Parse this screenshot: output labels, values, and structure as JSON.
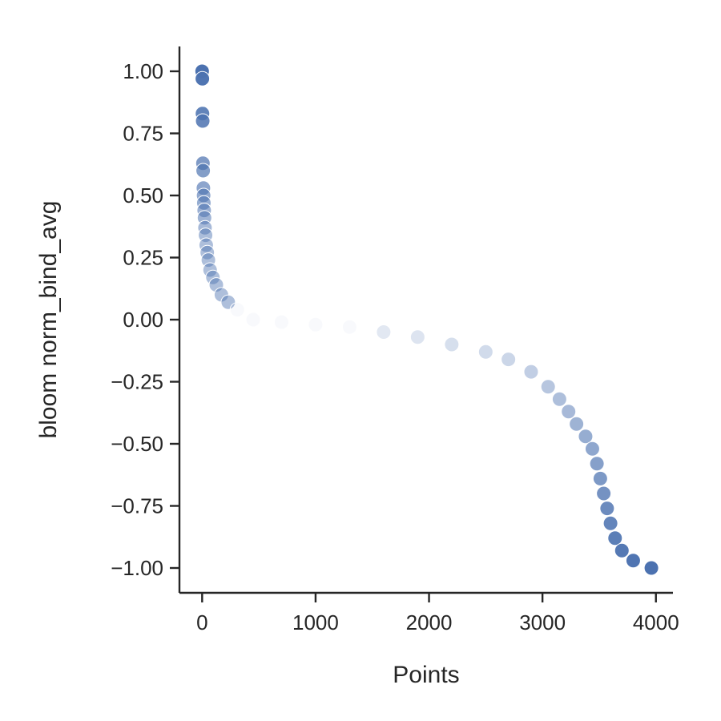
{
  "chart_data": {
    "type": "scatter",
    "title": "",
    "xlabel": "Points",
    "ylabel": "bloom norm_bind_avg",
    "xlim": [
      -200,
      4150
    ],
    "ylim": [
      -1.1,
      1.1
    ],
    "xticks": [
      0,
      1000,
      2000,
      3000,
      4000
    ],
    "xtick_labels": [
      "0",
      "1000",
      "2000",
      "3000",
      "4000"
    ],
    "yticks": [
      1.0,
      0.75,
      0.5,
      0.25,
      0.0,
      -0.25,
      -0.5,
      -0.75,
      -1.0
    ],
    "ytick_labels": [
      "1.00",
      "0.75",
      "0.50",
      "0.25",
      "0.00",
      "−0.25",
      "−0.50",
      "−0.75",
      "−1.00"
    ],
    "grid": false,
    "legend": false,
    "marker_color": "#4c72b0",
    "points": [
      {
        "x": 0,
        "y": 1.0
      },
      {
        "x": 2,
        "y": 0.97
      },
      {
        "x": 3,
        "y": 0.83
      },
      {
        "x": 5,
        "y": 0.8
      },
      {
        "x": 7,
        "y": 0.63
      },
      {
        "x": 9,
        "y": 0.6
      },
      {
        "x": 11,
        "y": 0.53
      },
      {
        "x": 13,
        "y": 0.5
      },
      {
        "x": 15,
        "y": 0.47
      },
      {
        "x": 18,
        "y": 0.44
      },
      {
        "x": 21,
        "y": 0.41
      },
      {
        "x": 25,
        "y": 0.37
      },
      {
        "x": 30,
        "y": 0.34
      },
      {
        "x": 36,
        "y": 0.3
      },
      {
        "x": 45,
        "y": 0.27
      },
      {
        "x": 55,
        "y": 0.24
      },
      {
        "x": 70,
        "y": 0.2
      },
      {
        "x": 95,
        "y": 0.17
      },
      {
        "x": 125,
        "y": 0.14
      },
      {
        "x": 170,
        "y": 0.1
      },
      {
        "x": 230,
        "y": 0.07
      },
      {
        "x": 310,
        "y": 0.04
      },
      {
        "x": 450,
        "y": 0.0
      },
      {
        "x": 700,
        "y": -0.01
      },
      {
        "x": 1000,
        "y": -0.02
      },
      {
        "x": 1300,
        "y": -0.03
      },
      {
        "x": 1600,
        "y": -0.05
      },
      {
        "x": 1900,
        "y": -0.07
      },
      {
        "x": 2200,
        "y": -0.1
      },
      {
        "x": 2500,
        "y": -0.13
      },
      {
        "x": 2700,
        "y": -0.16
      },
      {
        "x": 2900,
        "y": -0.21
      },
      {
        "x": 3050,
        "y": -0.27
      },
      {
        "x": 3150,
        "y": -0.32
      },
      {
        "x": 3230,
        "y": -0.37
      },
      {
        "x": 3300,
        "y": -0.42
      },
      {
        "x": 3380,
        "y": -0.47
      },
      {
        "x": 3440,
        "y": -0.52
      },
      {
        "x": 3480,
        "y": -0.58
      },
      {
        "x": 3510,
        "y": -0.64
      },
      {
        "x": 3540,
        "y": -0.7
      },
      {
        "x": 3570,
        "y": -0.76
      },
      {
        "x": 3600,
        "y": -0.82
      },
      {
        "x": 3640,
        "y": -0.88
      },
      {
        "x": 3700,
        "y": -0.93
      },
      {
        "x": 3800,
        "y": -0.97
      },
      {
        "x": 3960,
        "y": -1.0
      }
    ]
  }
}
